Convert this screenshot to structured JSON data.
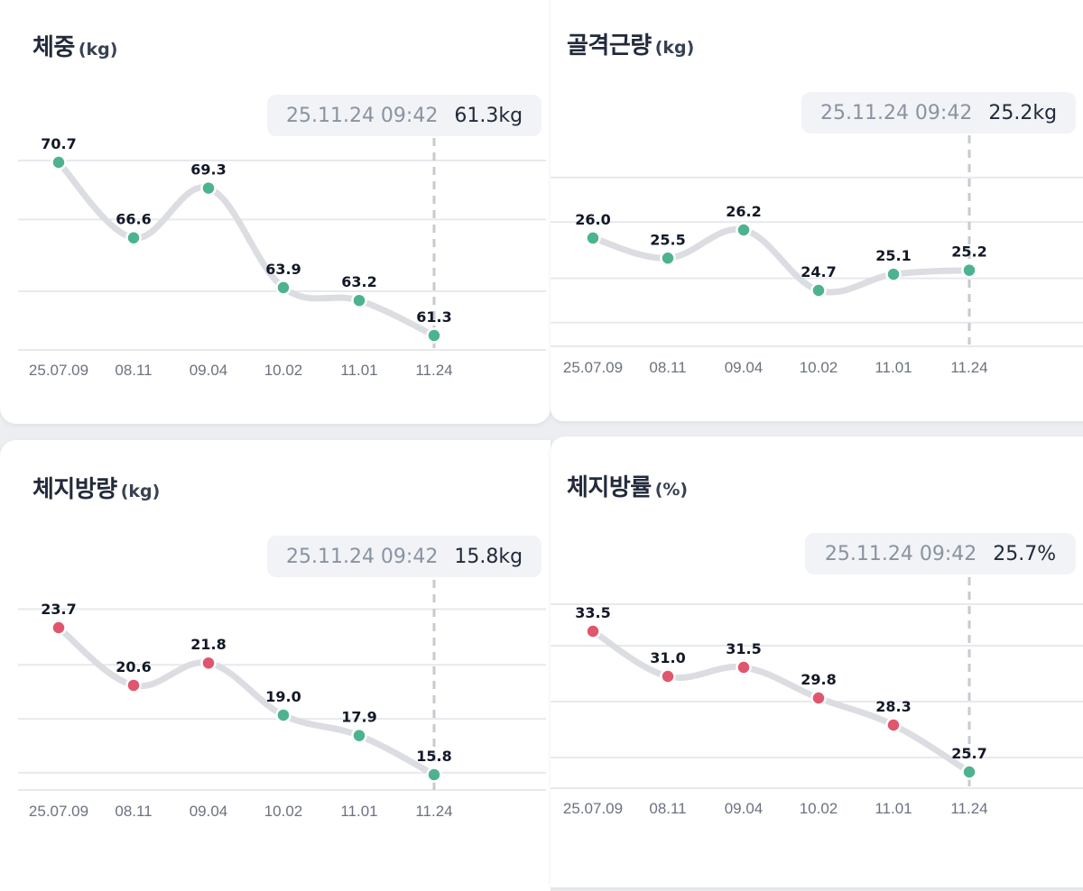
{
  "colors": {
    "normal": "#4db38f",
    "high": "#e0566d",
    "line": "#dcdde2"
  },
  "chart_data": [
    {
      "type": "line",
      "title": "체중",
      "unit": "(kg)",
      "tooltip": {
        "time": "25.11.24 09:42",
        "value": "61.3kg"
      },
      "categories": [
        "25.07.09",
        "08.11",
        "09.04",
        "10.02",
        "11.01",
        "11.24"
      ],
      "values": [
        70.7,
        66.6,
        69.3,
        63.9,
        63.2,
        61.3
      ],
      "labels": [
        "70.7",
        "66.6",
        "69.3",
        "63.9",
        "63.2",
        "61.3"
      ],
      "status": [
        "normal",
        "normal",
        "normal",
        "normal",
        "normal",
        "normal"
      ],
      "ylim": [
        57.5,
        72.5
      ],
      "gridlines": [
        71.6,
        67.6,
        63.7,
        59.7,
        57.1
      ],
      "xlabel": "",
      "ylabel": ""
    },
    {
      "type": "line",
      "title": "골격근량",
      "unit": "(kg)",
      "tooltip": {
        "time": "25.11.24 09:42",
        "value": "25.2kg"
      },
      "categories": [
        "25.07.09",
        "08.11",
        "09.04",
        "10.02",
        "11.01",
        "11.24"
      ],
      "values": [
        26.0,
        25.5,
        26.2,
        24.7,
        25.1,
        25.2
      ],
      "labels": [
        "26.0",
        "25.5",
        "26.2",
        "24.7",
        "25.1",
        "25.2"
      ],
      "status": [
        "normal",
        "normal",
        "normal",
        "normal",
        "normal",
        "normal"
      ],
      "ylim": [
        23.9,
        27.4
      ],
      "gridlines": [
        27.5,
        26.4,
        25.0,
        23.9
      ],
      "xlabel": "",
      "ylabel": ""
    },
    {
      "type": "line",
      "title": "체지방량",
      "unit": "(kg)",
      "tooltip": {
        "time": "25.11.24 09:42",
        "value": "15.8kg"
      },
      "categories": [
        "25.07.09",
        "08.11",
        "09.04",
        "10.02",
        "11.01",
        "11.24"
      ],
      "values": [
        23.7,
        20.6,
        21.8,
        19.0,
        17.9,
        15.8
      ],
      "labels": [
        "23.7",
        "20.6",
        "21.8",
        "19.0",
        "17.9",
        "15.8"
      ],
      "status": [
        "high",
        "high",
        "high",
        "normal",
        "normal",
        "normal"
      ],
      "ylim": [
        12.5,
        26.0
      ],
      "gridlines": [
        24.7,
        21.7,
        18.8,
        15.9,
        13.0
      ],
      "xlabel": "",
      "ylabel": ""
    },
    {
      "type": "line",
      "title": "체지방률",
      "unit": "(%)",
      "tooltip": {
        "time": "25.11.24 09:42",
        "value": "25.7%"
      },
      "categories": [
        "25.07.09",
        "08.11",
        "09.04",
        "10.02",
        "11.01",
        "11.24"
      ],
      "values": [
        33.5,
        31.0,
        31.5,
        29.8,
        28.3,
        25.7
      ],
      "labels": [
        "33.5",
        "31.0",
        "31.5",
        "29.8",
        "28.3",
        "25.7"
      ],
      "status": [
        "high",
        "high",
        "high",
        "high",
        "high",
        "normal"
      ],
      "ylim": [
        23.5,
        36.0
      ],
      "gridlines": [
        35.0,
        32.7,
        29.6,
        26.5
      ],
      "xlabel": "",
      "ylabel": ""
    }
  ]
}
